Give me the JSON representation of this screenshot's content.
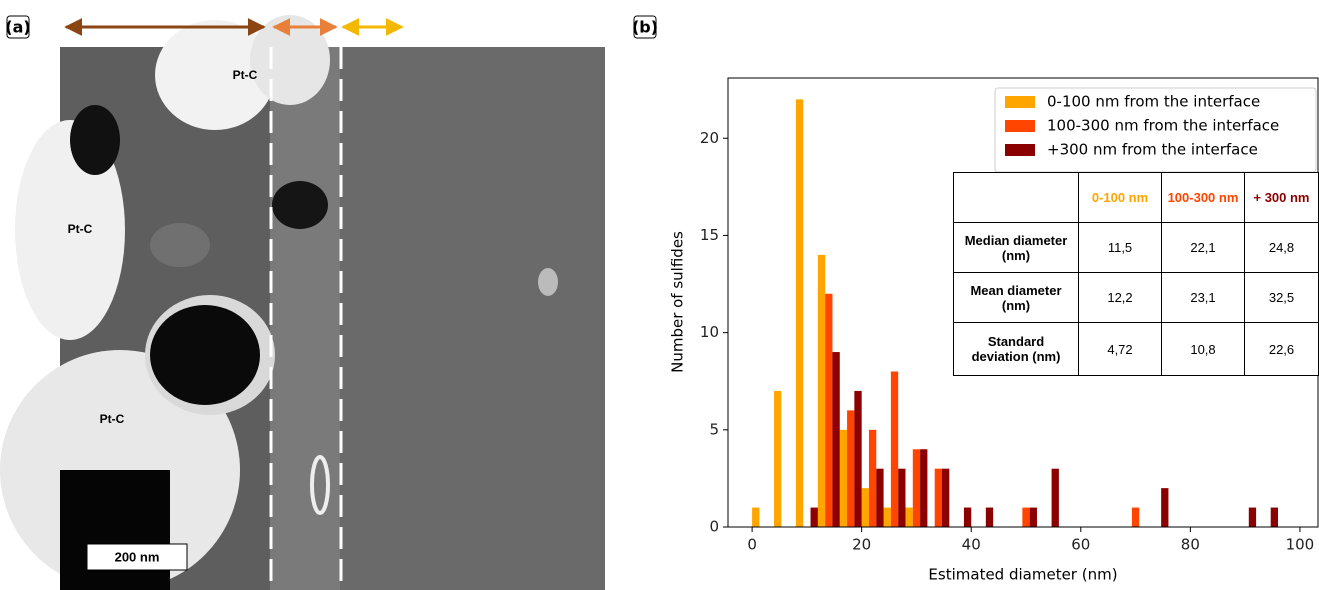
{
  "panel_a": {
    "label": "(a)",
    "annotations": [
      "Pt-C",
      "Pt-C",
      "Pt-C"
    ],
    "scale_bar": "200 nm"
  },
  "chart_data": {
    "type": "grouped_histogram",
    "panel_label": "(b)",
    "xlabel": "Estimated diameter (nm)",
    "ylabel": "Number of sulfides",
    "bins": [
      0,
      4,
      8,
      12,
      16,
      20,
      24,
      28,
      32,
      36,
      40,
      44,
      48,
      52,
      56,
      60,
      64,
      68,
      72,
      76,
      80,
      84,
      88,
      92,
      96,
      100
    ],
    "series": [
      {
        "name": "0-100 nm from the interface",
        "color": "#ffa500",
        "values": [
          1,
          7,
          22,
          14,
          5,
          2,
          1,
          1,
          0,
          0,
          0,
          0,
          0,
          0,
          0,
          0,
          0,
          0,
          0,
          0,
          0,
          0,
          0,
          0,
          0
        ]
      },
      {
        "name": "100-300 nm from the interface",
        "color": "#ff4500",
        "values": [
          0,
          0,
          0,
          12,
          6,
          5,
          8,
          4,
          3,
          0,
          0,
          0,
          1,
          0,
          0,
          0,
          0,
          1,
          0,
          0,
          0,
          0,
          0,
          0,
          0
        ]
      },
      {
        "name": "+300 nm from the interface",
        "color": "#8b0000",
        "values": [
          0,
          0,
          1,
          9,
          7,
          3,
          3,
          4,
          3,
          1,
          1,
          0,
          1,
          3,
          0,
          0,
          0,
          0,
          2,
          0,
          0,
          0,
          1,
          1,
          0
        ]
      }
    ],
    "xlim": [
      -4.4,
      103.3
    ],
    "ylim": [
      0,
      23.1
    ],
    "xticks": [
      0,
      20,
      40,
      60,
      80,
      100
    ],
    "yticks": [
      0,
      5,
      10,
      15,
      20
    ],
    "legend": "upper right",
    "table": {
      "columns": [
        {
          "label": "0-100 nm",
          "color": "#ffa500"
        },
        {
          "label": "100-300 nm",
          "color": "#ff4500"
        },
        {
          "label": "+ 300 nm",
          "color": "#8b0000"
        }
      ],
      "rows": [
        [
          "Median diameter (nm)",
          "11,5",
          "22,1",
          "24,8"
        ],
        [
          "Mean diameter (nm)",
          "12,2",
          "23,1",
          "32,5"
        ],
        [
          "Standard deviation (nm)",
          "4,72",
          "10,8",
          "22,6"
        ]
      ]
    }
  }
}
